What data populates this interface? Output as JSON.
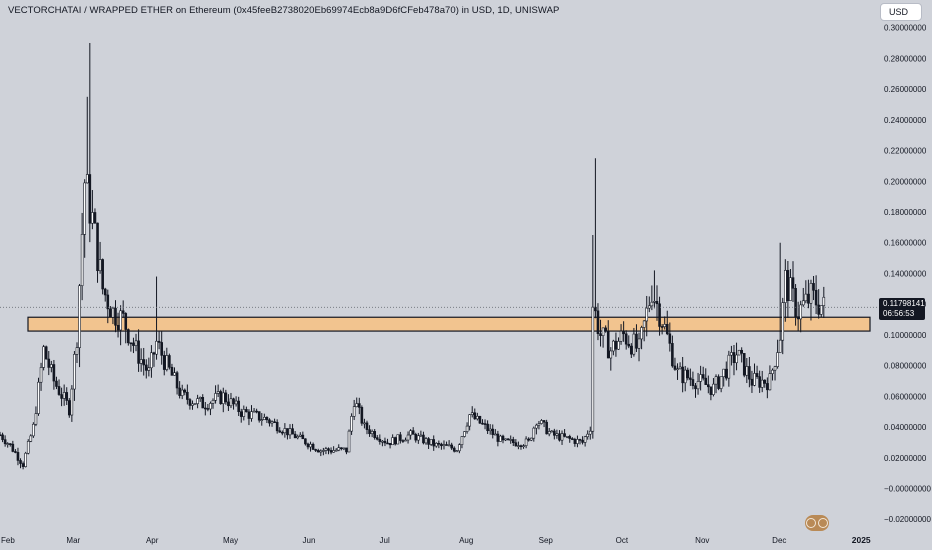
{
  "header": {
    "title": "VECTORCHATAI / WRAPPED ETHER on Ethereum (0x45feeB2738020Eb69974Ecb8a9D6fCFeb478a70) in USD, 1D, UNISWAP",
    "currency_button": "USD"
  },
  "price_tag": {
    "price": "0.11798141",
    "countdown": "06:56:53"
  },
  "colors": {
    "background": "#cfd2d9",
    "candle": "#131722",
    "zone_fill": "#f2c48f",
    "zone_border": "#131722",
    "price_line": "#6b6f78"
  },
  "chart_data": {
    "type": "candlestick",
    "title": "VECTORCHATAI / WRAPPED ETHER on Ethereum (0x45feeB2738020Eb69974Ecb8a9D6fCFeb478a70) in USD, 1D, UNISWAP",
    "xlabel": "",
    "ylabel": "",
    "ylim": [
      -0.027,
      0.305
    ],
    "y_ticks": [
      0.3,
      0.28,
      0.26,
      0.24,
      0.22,
      0.2,
      0.18,
      0.16,
      0.14,
      0.12,
      0.1,
      0.08,
      0.06,
      0.04,
      0.02,
      0.0,
      -0.02
    ],
    "y_tick_labels": [
      "0.30000000",
      "0.28000000",
      "0.26000000",
      "0.24000000",
      "0.22000000",
      "0.20000000",
      "0.18000000",
      "0.16000000",
      "0.14000000",
      "0.12000000",
      "0.10000000",
      "0.08000000",
      "0.06000000",
      "0.04000000",
      "0.02000000",
      "−0.00000000",
      "−0.02000000"
    ],
    "x_range": [
      "2024-02-01",
      "2025-01-05"
    ],
    "x_ticks": [
      {
        "date": "2024-02-01",
        "label": "Feb",
        "bold": false
      },
      {
        "date": "2024-03-01",
        "label": "Mar",
        "bold": false
      },
      {
        "date": "2024-04-01",
        "label": "Apr",
        "bold": false
      },
      {
        "date": "2024-05-01",
        "label": "May",
        "bold": false
      },
      {
        "date": "2024-06-01",
        "label": "Jun",
        "bold": false
      },
      {
        "date": "2024-07-01",
        "label": "Jul",
        "bold": false
      },
      {
        "date": "2024-08-01",
        "label": "Aug",
        "bold": false
      },
      {
        "date": "2024-09-01",
        "label": "Sep",
        "bold": false
      },
      {
        "date": "2024-10-01",
        "label": "Oct",
        "bold": false
      },
      {
        "date": "2024-11-01",
        "label": "Nov",
        "bold": false
      },
      {
        "date": "2024-12-01",
        "label": "Dec",
        "bold": false
      },
      {
        "date": "2025-01-01",
        "label": "2025",
        "bold": true
      }
    ],
    "current_price": 0.11798141,
    "support_zone": {
      "low": 0.1025,
      "high": 0.1115
    },
    "anchors": [
      [
        "2024-02-01",
        0.035
      ],
      [
        "2024-02-05",
        0.028
      ],
      [
        "2024-02-10",
        0.016
      ],
      [
        "2024-02-14",
        0.04
      ],
      [
        "2024-02-18",
        0.09
      ],
      [
        "2024-02-22",
        0.07
      ],
      [
        "2024-02-28",
        0.052
      ],
      [
        "2024-03-02",
        0.1
      ],
      [
        "2024-03-05",
        0.2
      ],
      [
        "2024-03-08",
        0.175
      ],
      [
        "2024-03-12",
        0.13
      ],
      [
        "2024-03-16",
        0.115
      ],
      [
        "2024-03-20",
        0.11
      ],
      [
        "2024-03-25",
        0.09
      ],
      [
        "2024-03-30",
        0.075
      ],
      [
        "2024-04-02",
        0.095
      ],
      [
        "2024-04-06",
        0.08
      ],
      [
        "2024-04-12",
        0.06
      ],
      [
        "2024-04-20",
        0.055
      ],
      [
        "2024-04-28",
        0.06
      ],
      [
        "2024-05-05",
        0.05
      ],
      [
        "2024-05-15",
        0.045
      ],
      [
        "2024-05-25",
        0.035
      ],
      [
        "2024-06-05",
        0.025
      ],
      [
        "2024-06-15",
        0.025
      ],
      [
        "2024-06-18",
        0.058
      ],
      [
        "2024-06-22",
        0.04
      ],
      [
        "2024-07-01",
        0.03
      ],
      [
        "2024-07-10",
        0.035
      ],
      [
        "2024-07-20",
        0.028
      ],
      [
        "2024-07-28",
        0.026
      ],
      [
        "2024-08-02",
        0.048
      ],
      [
        "2024-08-08",
        0.04
      ],
      [
        "2024-08-15",
        0.03
      ],
      [
        "2024-08-25",
        0.03
      ],
      [
        "2024-08-28",
        0.045
      ],
      [
        "2024-09-03",
        0.035
      ],
      [
        "2024-09-15",
        0.03
      ],
      [
        "2024-09-18",
        0.04
      ],
      [
        "2024-09-19",
        0.12
      ],
      [
        "2024-09-22",
        0.1
      ],
      [
        "2024-09-26",
        0.09
      ],
      [
        "2024-10-01",
        0.1
      ],
      [
        "2024-10-07",
        0.09
      ],
      [
        "2024-10-12",
        0.13
      ],
      [
        "2024-10-16",
        0.11
      ],
      [
        "2024-10-22",
        0.075
      ],
      [
        "2024-10-30",
        0.07
      ],
      [
        "2024-11-05",
        0.065
      ],
      [
        "2024-11-14",
        0.088
      ],
      [
        "2024-11-20",
        0.07
      ],
      [
        "2024-11-27",
        0.07
      ],
      [
        "2024-12-01",
        0.1
      ],
      [
        "2024-12-03",
        0.135
      ],
      [
        "2024-12-08",
        0.115
      ],
      [
        "2024-12-13",
        0.125
      ],
      [
        "2024-12-18",
        0.118
      ]
    ],
    "spikes": [
      {
        "date": "2024-03-07",
        "high": 0.29
      },
      {
        "date": "2024-03-06",
        "high": 0.255
      },
      {
        "date": "2024-04-02",
        "high": 0.138
      },
      {
        "date": "2024-09-20",
        "high": 0.215
      },
      {
        "date": "2024-09-19",
        "high": 0.165
      },
      {
        "date": "2024-12-01",
        "high": 0.16
      },
      {
        "date": "2024-10-13",
        "high": 0.142
      }
    ]
  }
}
